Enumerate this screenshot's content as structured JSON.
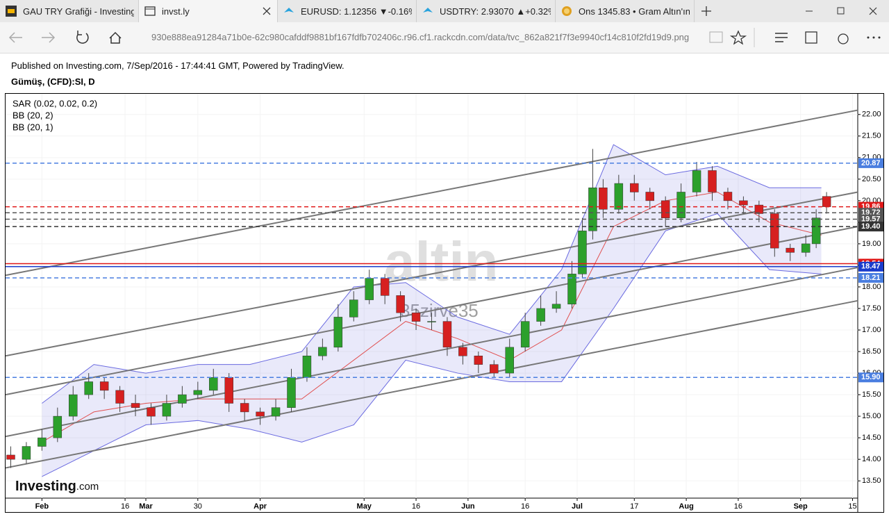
{
  "browser": {
    "tabs": [
      {
        "title": "GAU TRY Grafiği - Investing"
      },
      {
        "title": "invst.ly"
      },
      {
        "title": "EURUSD: 1.12356 ▼-0.16%"
      },
      {
        "title": "USDTRY: 2.93070 ▲+0.32%"
      },
      {
        "title": "Ons 1345.83 • Gram Altın'ın"
      }
    ],
    "url": "930e888ea91284a71b0e-62c980cafddf9881bf167fdfb702406c.r96.cf1.rackcdn.com/data/tvc_862a821f7f3e9940cf14c810f2fd19d9.png"
  },
  "header": {
    "published": "Published on Investing.com, 7/Sep/2016 - 17:44:41 GMT, Powered by TradingView.",
    "symbol": "Gümüş, (CFD):SI, D"
  },
  "chart_data": {
    "type": "candlestick",
    "indicators": [
      "SAR (0.02, 0.02, 0.2)",
      "BB (20, 2)",
      "BB (20, 1)"
    ],
    "watermarks": [
      "altin",
      "35zirve35"
    ],
    "logo": "Investing",
    "logo_suffix": ".com",
    "up_color": "#2ca02c",
    "down_color": "#d62020",
    "grid": true,
    "x": [
      -6,
      -3,
      0,
      3,
      6,
      9,
      12,
      15,
      18,
      21,
      24,
      27,
      30,
      33,
      36,
      39,
      42,
      45,
      48,
      51,
      54,
      57,
      60,
      63,
      66,
      69,
      72,
      75,
      78,
      81,
      84,
      87,
      90,
      93,
      96,
      99,
      102,
      104,
      106,
      108,
      111,
      114,
      117,
      120,
      123,
      126,
      129,
      132,
      135,
      138,
      141,
      144,
      147,
      149,
      151
    ],
    "open": [
      14.1,
      14.0,
      14.3,
      14.5,
      15.0,
      15.5,
      15.8,
      15.6,
      15.3,
      15.2,
      15.0,
      15.3,
      15.5,
      15.6,
      15.9,
      15.3,
      15.1,
      15.0,
      15.2,
      15.9,
      16.4,
      16.6,
      17.3,
      17.7,
      18.2,
      17.8,
      17.4,
      17.2,
      17.2,
      16.6,
      16.4,
      16.2,
      16.0,
      16.6,
      17.2,
      17.5,
      17.6,
      18.3,
      19.3,
      20.3,
      19.8,
      20.4,
      20.2,
      20.0,
      19.6,
      20.2,
      20.7,
      20.2,
      20.0,
      19.9,
      19.7,
      18.9,
      18.8,
      19.0,
      20.1
    ],
    "high": [
      14.3,
      14.4,
      14.7,
      15.2,
      15.7,
      16.0,
      15.9,
      15.7,
      15.5,
      15.3,
      15.5,
      15.7,
      15.8,
      16.1,
      16.0,
      15.4,
      15.2,
      15.4,
      16.1,
      16.6,
      16.8,
      17.6,
      17.9,
      18.4,
      18.3,
      17.9,
      17.5,
      17.4,
      17.3,
      16.7,
      16.5,
      16.3,
      16.8,
      17.4,
      17.8,
      17.9,
      18.6,
      19.6,
      21.2,
      20.5,
      20.6,
      20.6,
      20.3,
      20.1,
      20.4,
      20.9,
      20.8,
      20.3,
      20.1,
      20.0,
      19.8,
      19.0,
      19.2,
      19.8,
      20.2
    ],
    "low": [
      13.8,
      13.9,
      14.2,
      14.4,
      14.9,
      15.4,
      15.4,
      15.1,
      15.0,
      14.8,
      14.9,
      15.2,
      15.4,
      15.5,
      15.1,
      14.9,
      14.8,
      14.9,
      15.1,
      15.8,
      16.3,
      16.5,
      17.2,
      17.6,
      17.6,
      17.2,
      17.0,
      17.0,
      16.4,
      16.2,
      16.0,
      15.9,
      15.9,
      16.5,
      17.1,
      17.4,
      17.5,
      18.2,
      19.1,
      19.6,
      19.7,
      20.0,
      19.8,
      19.4,
      19.5,
      20.1,
      20.0,
      19.8,
      19.7,
      19.5,
      18.7,
      18.6,
      18.7,
      18.9,
      19.7
    ],
    "close": [
      14.0,
      14.3,
      14.5,
      15.0,
      15.5,
      15.8,
      15.6,
      15.3,
      15.2,
      15.0,
      15.3,
      15.5,
      15.6,
      15.9,
      15.3,
      15.1,
      15.0,
      15.2,
      15.9,
      16.4,
      16.6,
      17.3,
      17.7,
      18.2,
      17.8,
      17.4,
      17.2,
      17.2,
      16.6,
      16.4,
      16.2,
      16.0,
      16.6,
      17.2,
      17.5,
      17.6,
      18.3,
      19.3,
      20.3,
      19.8,
      20.4,
      20.2,
      20.0,
      19.6,
      20.2,
      20.7,
      20.2,
      20.0,
      19.9,
      19.7,
      18.9,
      18.8,
      19.0,
      19.6,
      19.86
    ],
    "bands": {
      "x": [
        0,
        10,
        20,
        30,
        40,
        50,
        60,
        70,
        80,
        90,
        100,
        110,
        120,
        130,
        140,
        150
      ],
      "upper": [
        15.3,
        16.2,
        16.0,
        16.2,
        16.2,
        16.5,
        18.0,
        18.1,
        17.3,
        16.9,
        18.4,
        21.3,
        20.6,
        20.8,
        20.3,
        20.3
      ],
      "middle": [
        14.4,
        15.1,
        15.3,
        15.4,
        15.4,
        15.4,
        16.3,
        17.2,
        16.8,
        16.3,
        17.0,
        19.4,
        20.0,
        20.2,
        19.5,
        19.2
      ],
      "lower": [
        13.6,
        14.2,
        14.8,
        14.9,
        14.7,
        14.4,
        14.8,
        16.3,
        16.0,
        15.8,
        15.8,
        17.5,
        19.3,
        19.7,
        18.4,
        18.3
      ],
      "color": "#6a6ae0",
      "middle_color": "#e05050"
    },
    "trend_lines": [
      {
        "x": [
          -7,
          157
        ],
        "values": [
          18.27,
          22.1
        ]
      },
      {
        "x": [
          -7,
          157
        ],
        "values": [
          16.4,
          20.2
        ]
      },
      {
        "x": [
          -7,
          157
        ],
        "values": [
          15.5,
          19.4
        ]
      },
      {
        "x": [
          -7,
          157
        ],
        "values": [
          14.53,
          18.45
        ]
      },
      {
        "x": [
          -7,
          157
        ],
        "values": [
          13.8,
          17.68
        ]
      }
    ],
    "price_levels": [
      {
        "value": 20.87,
        "label": "20.87",
        "color": "#4a7ee0",
        "dashed": true
      },
      {
        "value": 19.86,
        "label": "19.86",
        "color": "#e01818",
        "dashed": true
      },
      {
        "value": 19.72,
        "label": "19.72",
        "color": "#555555",
        "dashed": true
      },
      {
        "value": 19.57,
        "label": "19.57",
        "color": "#555555",
        "dashed": true
      },
      {
        "value": 19.4,
        "label": "19.40",
        "color": "#333333",
        "dashed": true
      },
      {
        "value": 18.54,
        "label": "18.54",
        "color": "#e01818",
        "dashed": false
      },
      {
        "value": 18.47,
        "label": "18.47",
        "color": "#1a3ccc",
        "dashed": false
      },
      {
        "value": 18.21,
        "label": "18.21",
        "color": "#4a7ee0",
        "dashed": true
      },
      {
        "value": 15.9,
        "label": "15.90",
        "color": "#4a7ee0",
        "dashed": true
      }
    ],
    "xlim": [
      -7,
      157
    ],
    "ylim": [
      13.1,
      22.48
    ],
    "xticks": [
      {
        "value": 0,
        "label": "Feb"
      },
      {
        "value": 20,
        "label": "Mar"
      },
      16,
      30,
      {
        "value": 42,
        "label": "Apr"
      },
      {
        "value": 62,
        "label": "May"
      },
      {
        "value": 72,
        "label": "16"
      },
      {
        "value": 82,
        "label": "Jun"
      },
      {
        "value": 93,
        "label": "16"
      },
      {
        "value": 103,
        "label": "Jul"
      },
      {
        "value": 114,
        "label": "17"
      },
      {
        "value": 124,
        "label": "Aug"
      },
      {
        "value": 134,
        "label": "16"
      },
      {
        "value": 146,
        "label": "Sep"
      },
      {
        "value": 156,
        "label": "15"
      }
    ],
    "yticks": [
      {
        "value": 13.5,
        "label": "13.50"
      },
      {
        "value": 14,
        "label": "14.00"
      },
      {
        "value": 14.5,
        "label": "14.50"
      },
      {
        "value": 15,
        "label": "15.00"
      },
      {
        "value": 15.5,
        "label": "15.50"
      },
      {
        "value": 16,
        "label": "16.00"
      },
      {
        "value": 16.5,
        "label": "16.50"
      },
      {
        "value": 17,
        "label": "17.00"
      },
      {
        "value": 17.5,
        "label": "17.50"
      },
      {
        "value": 18,
        "label": "18.00"
      },
      {
        "value": 18.5,
        "label": "18.50"
      },
      {
        "value": 19,
        "label": "19.00"
      },
      {
        "value": 19.5,
        "label": "19.50"
      },
      {
        "value": 20,
        "label": "20.00"
      },
      {
        "value": 20.5,
        "label": "20.50"
      },
      {
        "value": 21,
        "label": "21.00"
      },
      {
        "value": 21.5,
        "label": "21.50"
      },
      {
        "value": 22,
        "label": "22.00"
      }
    ]
  }
}
